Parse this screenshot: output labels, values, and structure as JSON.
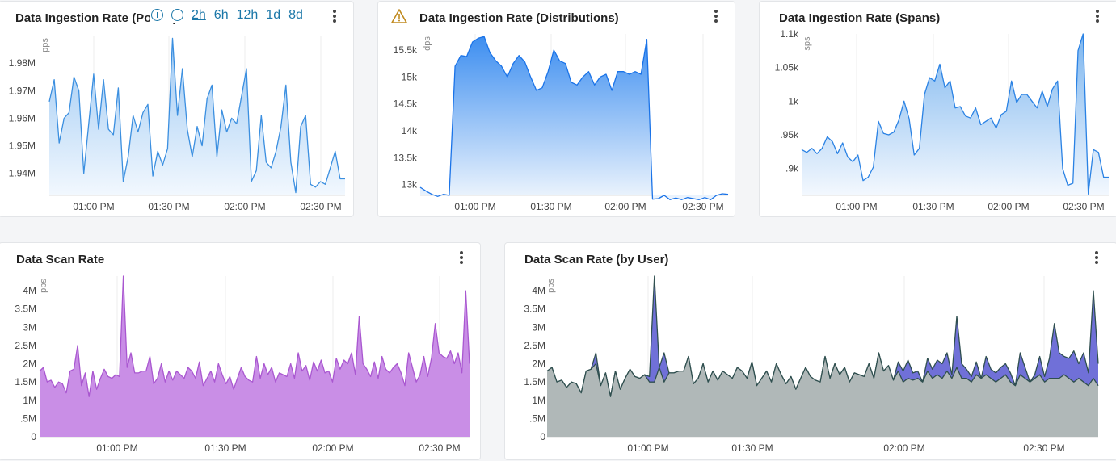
{
  "time_controls": {
    "zoom_in": "zoom-in",
    "zoom_out": "zoom-out",
    "ranges": [
      "2h",
      "6h",
      "12h",
      "1d",
      "8d"
    ],
    "active": "2h"
  },
  "charts": [
    {
      "id": "c1",
      "title": "Data Ingestion Rate (Points)",
      "ylabel": "pps",
      "warning": false,
      "yticks": [
        {
          "v": 1.98,
          "t": "1.98M"
        },
        {
          "v": 1.97,
          "t": "1.97M"
        },
        {
          "v": 1.96,
          "t": "1.96M"
        },
        {
          "v": 1.95,
          "t": "1.95M"
        },
        {
          "v": 1.94,
          "t": "1.94M"
        }
      ],
      "xticks": [
        "01:00 PM",
        "01:30 PM",
        "02:00 PM",
        "02:30 PM"
      ],
      "color": "#3b8fe0",
      "fillTop": "#9cc8f3",
      "fillBottom": "#f2f8fe"
    },
    {
      "id": "c2",
      "title": "Data Ingestion Rate (Distributions)",
      "ylabel": "dps",
      "warning": true,
      "yticks": [
        {
          "v": 15.5,
          "t": "15.5k"
        },
        {
          "v": 15,
          "t": "15k"
        },
        {
          "v": 14.5,
          "t": "14.5k"
        },
        {
          "v": 14,
          "t": "14k"
        },
        {
          "v": 13.5,
          "t": "13.5k"
        },
        {
          "v": 13,
          "t": "13k"
        }
      ],
      "xticks": [
        "01:00 PM",
        "01:30 PM",
        "02:00 PM",
        "02:30 PM"
      ],
      "color": "#1a73e8",
      "fillTop": "#3d8ef0",
      "fillBottom": "#eef5fd"
    },
    {
      "id": "c3",
      "title": "Data Ingestion Rate (Spans)",
      "ylabel": "sps",
      "warning": false,
      "yticks": [
        {
          "v": 1.1,
          "t": "1.1k"
        },
        {
          "v": 1.05,
          "t": "1.05k"
        },
        {
          "v": 1,
          "t": "1k"
        },
        {
          "v": 0.95,
          "t": ".95k"
        },
        {
          "v": 0.9,
          "t": ".9k"
        }
      ],
      "xticks": [
        "01:00 PM",
        "01:30 PM",
        "02:00 PM",
        "02:30 PM"
      ],
      "color": "#2a82e4",
      "fillTop": "#7db6ef",
      "fillBottom": "#f3f8fe"
    },
    {
      "id": "c4",
      "title": "Data Scan Rate",
      "ylabel": "pps",
      "warning": false,
      "yticks": [
        {
          "v": 4,
          "t": "4M"
        },
        {
          "v": 3.5,
          "t": "3.5M"
        },
        {
          "v": 3,
          "t": "3M"
        },
        {
          "v": 2.5,
          "t": "2.5M"
        },
        {
          "v": 2,
          "t": "2M"
        },
        {
          "v": 1.5,
          "t": "1.5M"
        },
        {
          "v": 1,
          "t": "1M"
        },
        {
          "v": 0.5,
          "t": ".5M"
        },
        {
          "v": 0,
          "t": "0"
        }
      ],
      "xticks": [
        "01:00 PM",
        "01:30 PM",
        "02:00 PM",
        "02:30 PM"
      ],
      "color": "#a957d0",
      "fillTop": "#c98ee6",
      "fillBottom": "#c98ee6"
    },
    {
      "id": "c5",
      "title": "Data Scan Rate (by User)",
      "ylabel": "pps",
      "warning": false,
      "yticks": [
        {
          "v": 4,
          "t": "4M"
        },
        {
          "v": 3.5,
          "t": "3.5M"
        },
        {
          "v": 3,
          "t": "3M"
        },
        {
          "v": 2.5,
          "t": "2.5M"
        },
        {
          "v": 2,
          "t": "2M"
        },
        {
          "v": 1.5,
          "t": "1.5M"
        },
        {
          "v": 1,
          "t": "1M"
        },
        {
          "v": 0.5,
          "t": ".5M"
        },
        {
          "v": 0,
          "t": "0"
        }
      ],
      "xticks": [
        "01:00 PM",
        "01:30 PM",
        "02:00 PM",
        "02:30 PM"
      ],
      "color": "#2f4f4f",
      "fillTop": "#b0b8b8",
      "fillBottom": "#b0b8b8"
    }
  ],
  "chart_data": [
    {
      "type": "area",
      "title": "Data Ingestion Rate (Points)",
      "ylabel": "pps",
      "ylim": [
        1.932,
        1.99
      ],
      "x_range": [
        "12:35 PM",
        "02:40 PM"
      ],
      "values": [
        1.966,
        1.974,
        1.951,
        1.96,
        1.962,
        1.975,
        1.97,
        1.94,
        1.958,
        1.976,
        1.956,
        1.974,
        1.956,
        1.954,
        1.971,
        1.937,
        1.946,
        1.961,
        1.955,
        1.962,
        1.965,
        1.939,
        1.948,
        1.943,
        1.949,
        1.989,
        1.961,
        1.978,
        1.956,
        1.946,
        1.957,
        1.95,
        1.967,
        1.972,
        1.946,
        1.963,
        1.955,
        1.96,
        1.958,
        1.968,
        1.978,
        1.937,
        1.941,
        1.961,
        1.944,
        1.942,
        1.948,
        1.957,
        1.972,
        1.944,
        1.933,
        1.957,
        1.961,
        1.936,
        1.935,
        1.937,
        1.936,
        1.942,
        1.948,
        1.938,
        1.938
      ]
    },
    {
      "type": "area",
      "title": "Data Ingestion Rate (Distributions)",
      "ylabel": "dps",
      "ylim": [
        12.8,
        15.8
      ],
      "x_range": [
        "12:35 PM",
        "02:40 PM"
      ],
      "values": [
        12.95,
        12.88,
        12.82,
        12.78,
        12.82,
        12.8,
        15.2,
        15.4,
        15.38,
        15.65,
        15.72,
        15.75,
        15.45,
        15.3,
        15.2,
        15.0,
        15.25,
        15.4,
        15.28,
        15.0,
        14.75,
        14.8,
        15.1,
        15.5,
        15.3,
        15.25,
        14.9,
        14.85,
        15.0,
        15.1,
        14.85,
        15.0,
        15.05,
        14.75,
        15.1,
        15.1,
        15.05,
        15.1,
        15.05,
        15.7,
        12.73,
        12.74,
        12.8,
        12.72,
        12.75,
        12.72,
        12.76,
        12.74,
        12.72,
        12.76,
        12.72,
        12.8,
        12.83,
        12.82
      ]
    },
    {
      "type": "area",
      "title": "Data Ingestion Rate (Spans)",
      "ylabel": "sps",
      "ylim": [
        0.86,
        1.1
      ],
      "x_range": [
        "12:35 PM",
        "02:40 PM"
      ],
      "values": [
        0.928,
        0.924,
        0.93,
        0.922,
        0.93,
        0.947,
        0.94,
        0.922,
        0.938,
        0.917,
        0.91,
        0.92,
        0.882,
        0.887,
        0.902,
        0.97,
        0.952,
        0.95,
        0.954,
        0.972,
        1.0,
        0.974,
        0.92,
        0.93,
        1.01,
        1.035,
        1.03,
        1.055,
        1.02,
        1.03,
        0.99,
        0.992,
        0.978,
        0.975,
        0.99,
        0.965,
        0.97,
        0.975,
        0.96,
        0.98,
        0.985,
        1.03,
        0.998,
        1.01,
        1.01,
        1.0,
        0.99,
        1.015,
        0.992,
        1.018,
        1.03,
        0.9,
        0.875,
        0.878,
        1.075,
        1.1,
        0.862,
        0.928,
        0.924,
        0.887,
        0.887
      ]
    },
    {
      "type": "area",
      "title": "Data Scan Rate",
      "ylabel": "pps",
      "ylim": [
        0,
        4.4
      ],
      "x_range": [
        "12:35 PM",
        "02:40 PM"
      ],
      "values": [
        1.8,
        1.9,
        1.5,
        1.55,
        1.35,
        1.5,
        1.45,
        1.2,
        1.8,
        1.85,
        2.5,
        1.4,
        1.75,
        1.1,
        1.8,
        1.3,
        1.6,
        1.85,
        1.65,
        1.6,
        1.7,
        1.65,
        4.4,
        1.9,
        2.3,
        1.75,
        1.75,
        1.8,
        1.8,
        2.2,
        1.45,
        1.6,
        2.0,
        1.5,
        1.8,
        1.55,
        1.8,
        1.7,
        1.6,
        1.9,
        1.8,
        1.6,
        2.05,
        1.4,
        1.6,
        1.8,
        1.5,
        2.0,
        1.7,
        1.45,
        1.65,
        1.3,
        1.6,
        1.9,
        1.65,
        1.55,
        1.5,
        2.2,
        1.6,
        2.0,
        1.7,
        1.9,
        1.5,
        1.75,
        1.7,
        1.65,
        2.0,
        1.6,
        2.3,
        1.8,
        1.95,
        1.55,
        2.05,
        1.8,
        2.1,
        1.75,
        1.8,
        1.5,
        2.15,
        1.85,
        2.1,
        2.0,
        2.3,
        1.7,
        3.3,
        2.0,
        1.85,
        1.65,
        2.05,
        1.6,
        2.2,
        1.85,
        1.75,
        1.9,
        2.0,
        1.75,
        1.4,
        2.3,
        1.9,
        1.5,
        1.7,
        2.2,
        1.65,
        2.15,
        3.1,
        2.3,
        2.2,
        2.15,
        2.35,
        2.0,
        2.3,
        1.75,
        4.0,
        2.0
      ]
    },
    {
      "type": "area",
      "title": "Data Scan Rate (by User)",
      "ylabel": "pps",
      "ylim": [
        0,
        4.4
      ],
      "x_range": [
        "12:35 PM",
        "02:40 PM"
      ],
      "series": [
        {
          "color": "#b0b8b8",
          "values": [
            1.8,
            1.9,
            1.5,
            1.55,
            1.35,
            1.5,
            1.45,
            1.2,
            1.8,
            1.85,
            2.0,
            1.4,
            1.75,
            1.1,
            1.8,
            1.3,
            1.6,
            1.85,
            1.65,
            1.6,
            1.7,
            1.5,
            1.5,
            1.9,
            1.5,
            1.75,
            1.75,
            1.8,
            1.8,
            2.2,
            1.45,
            1.6,
            2.0,
            1.5,
            1.8,
            1.55,
            1.8,
            1.7,
            1.6,
            1.9,
            1.8,
            1.6,
            2.05,
            1.4,
            1.6,
            1.8,
            1.5,
            2.0,
            1.7,
            1.45,
            1.65,
            1.3,
            1.6,
            1.9,
            1.65,
            1.55,
            1.5,
            2.2,
            1.6,
            2.0,
            1.7,
            1.9,
            1.5,
            1.75,
            1.7,
            1.65,
            2.0,
            1.6,
            2.3,
            1.8,
            1.95,
            1.55,
            1.8,
            1.5,
            1.6,
            1.55,
            1.6,
            1.5,
            1.8,
            1.6,
            1.7,
            1.6,
            1.8,
            1.6,
            1.9,
            1.6,
            1.6,
            1.5,
            1.7,
            1.6,
            1.7,
            1.6,
            1.5,
            1.6,
            1.7,
            1.5,
            1.4,
            1.7,
            1.6,
            1.5,
            1.6,
            1.7,
            1.5,
            1.6,
            1.6,
            1.6,
            1.7,
            1.6,
            1.5,
            1.6,
            1.5,
            1.4,
            1.6,
            1.4
          ]
        },
        {
          "color": "#7070d8",
          "values": [
            1.8,
            1.9,
            1.5,
            1.55,
            1.35,
            1.5,
            1.45,
            1.2,
            1.8,
            1.85,
            2.3,
            1.4,
            1.75,
            1.1,
            1.8,
            1.3,
            1.6,
            1.85,
            1.65,
            1.6,
            1.7,
            1.65,
            4.4,
            1.9,
            2.3,
            1.75,
            1.75,
            1.8,
            1.8,
            2.2,
            1.45,
            1.6,
            2.0,
            1.5,
            1.8,
            1.55,
            1.8,
            1.7,
            1.6,
            1.9,
            1.8,
            1.6,
            2.05,
            1.4,
            1.6,
            1.8,
            1.5,
            2.0,
            1.7,
            1.45,
            1.65,
            1.3,
            1.6,
            1.9,
            1.65,
            1.55,
            1.5,
            2.2,
            1.6,
            2.0,
            1.7,
            1.9,
            1.5,
            1.75,
            1.7,
            1.65,
            2.0,
            1.6,
            2.3,
            1.8,
            1.95,
            1.55,
            2.05,
            1.8,
            2.1,
            1.75,
            1.8,
            1.5,
            2.15,
            1.85,
            2.1,
            2.0,
            2.3,
            1.7,
            3.3,
            2.0,
            1.85,
            1.65,
            2.05,
            1.6,
            2.2,
            1.85,
            1.75,
            1.9,
            2.0,
            1.75,
            1.4,
            2.3,
            1.9,
            1.5,
            1.7,
            2.2,
            1.65,
            2.15,
            3.1,
            2.3,
            2.2,
            2.15,
            2.35,
            2.0,
            2.3,
            1.75,
            4.0,
            2.0
          ]
        }
      ]
    }
  ]
}
